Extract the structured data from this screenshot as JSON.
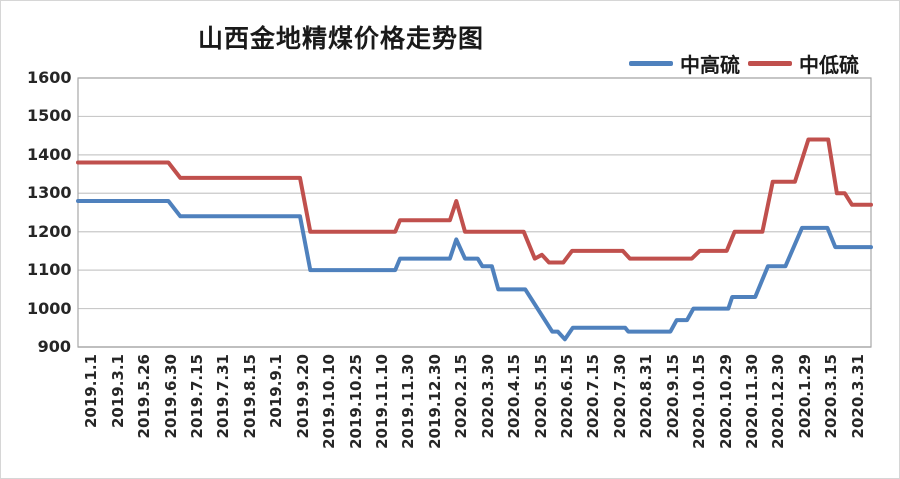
{
  "header": {
    "title": "山西金地精煤价格走势图"
  },
  "legend": {
    "items": [
      {
        "label": "中高硫",
        "color": "#4F81BD"
      },
      {
        "label": "中低硫",
        "color": "#C0504D"
      }
    ]
  },
  "colors": {
    "gridline": "#c9c9c9",
    "plot_border": "#a8a8a8",
    "axis_line": "#8c8c8c"
  },
  "chart_data": {
    "type": "line",
    "title": "山西金地精煤价格走势图",
    "xlabel": "",
    "ylabel": "",
    "ylim": [
      900,
      1600
    ],
    "grid": true,
    "legend_position": "top-right",
    "y_ticks": [
      1600,
      1500,
      1400,
      1300,
      1200,
      1100,
      1000,
      900
    ],
    "x_labels": [
      "2019.1.1",
      "2019.3.1",
      "2019.5.26",
      "2019.6.30",
      "2019.7.15",
      "2019.7.31",
      "2019.8.15",
      "2019.9.1",
      "2019.9.20",
      "2019.10.10",
      "2019.10.25",
      "2019.11.10",
      "2019.11.30",
      "2019.12.30",
      "2020.2.15",
      "2020.3.30",
      "2020.4.15",
      "2020.5.15",
      "2020.6.15",
      "2020.7.15",
      "2020.7.30",
      "2020.8.31",
      "2020.9.15",
      "2020.10.15",
      "2020.10.29",
      "2020.11.30",
      "2020.12.30",
      "2020.1.29",
      "2020.3.15",
      "2020.3.31"
    ],
    "series": [
      {
        "name": "中高硫",
        "color": "#4F81BD",
        "points": [
          [
            0,
            1280
          ],
          [
            11.4,
            1280
          ],
          [
            12.9,
            1240
          ],
          [
            28.0,
            1240
          ],
          [
            29.3,
            1100
          ],
          [
            40.0,
            1100
          ],
          [
            40.6,
            1130
          ],
          [
            46.9,
            1130
          ],
          [
            47.7,
            1180
          ],
          [
            48.8,
            1130
          ],
          [
            50.4,
            1130
          ],
          [
            51.0,
            1110
          ],
          [
            52.2,
            1110
          ],
          [
            53.0,
            1050
          ],
          [
            56.4,
            1050
          ],
          [
            59.8,
            940
          ],
          [
            60.5,
            940
          ],
          [
            61.4,
            920
          ],
          [
            62.4,
            950
          ],
          [
            69.0,
            950
          ],
          [
            69.4,
            940
          ],
          [
            74.7,
            940
          ],
          [
            75.5,
            970
          ],
          [
            76.8,
            970
          ],
          [
            77.6,
            1000
          ],
          [
            82.0,
            1000
          ],
          [
            82.5,
            1030
          ],
          [
            85.4,
            1030
          ],
          [
            87.0,
            1110
          ],
          [
            89.2,
            1110
          ],
          [
            91.3,
            1210
          ],
          [
            94.5,
            1210
          ],
          [
            95.5,
            1160
          ],
          [
            100,
            1160
          ]
        ]
      },
      {
        "name": "中低硫",
        "color": "#C0504D",
        "points": [
          [
            0,
            1380
          ],
          [
            11.4,
            1380
          ],
          [
            12.9,
            1340
          ],
          [
            28.0,
            1340
          ],
          [
            29.3,
            1200
          ],
          [
            40.0,
            1200
          ],
          [
            40.6,
            1230
          ],
          [
            46.9,
            1230
          ],
          [
            47.7,
            1280
          ],
          [
            48.8,
            1200
          ],
          [
            56.2,
            1200
          ],
          [
            57.6,
            1130
          ],
          [
            58.5,
            1140
          ],
          [
            59.4,
            1120
          ],
          [
            61.2,
            1120
          ],
          [
            62.3,
            1150
          ],
          [
            68.7,
            1150
          ],
          [
            69.6,
            1130
          ],
          [
            77.4,
            1130
          ],
          [
            78.4,
            1150
          ],
          [
            81.8,
            1150
          ],
          [
            82.8,
            1200
          ],
          [
            86.3,
            1200
          ],
          [
            87.6,
            1330
          ],
          [
            90.4,
            1330
          ],
          [
            92.1,
            1440
          ],
          [
            94.6,
            1440
          ],
          [
            95.7,
            1300
          ],
          [
            96.7,
            1300
          ],
          [
            97.6,
            1270
          ],
          [
            100,
            1270
          ]
        ]
      }
    ]
  }
}
